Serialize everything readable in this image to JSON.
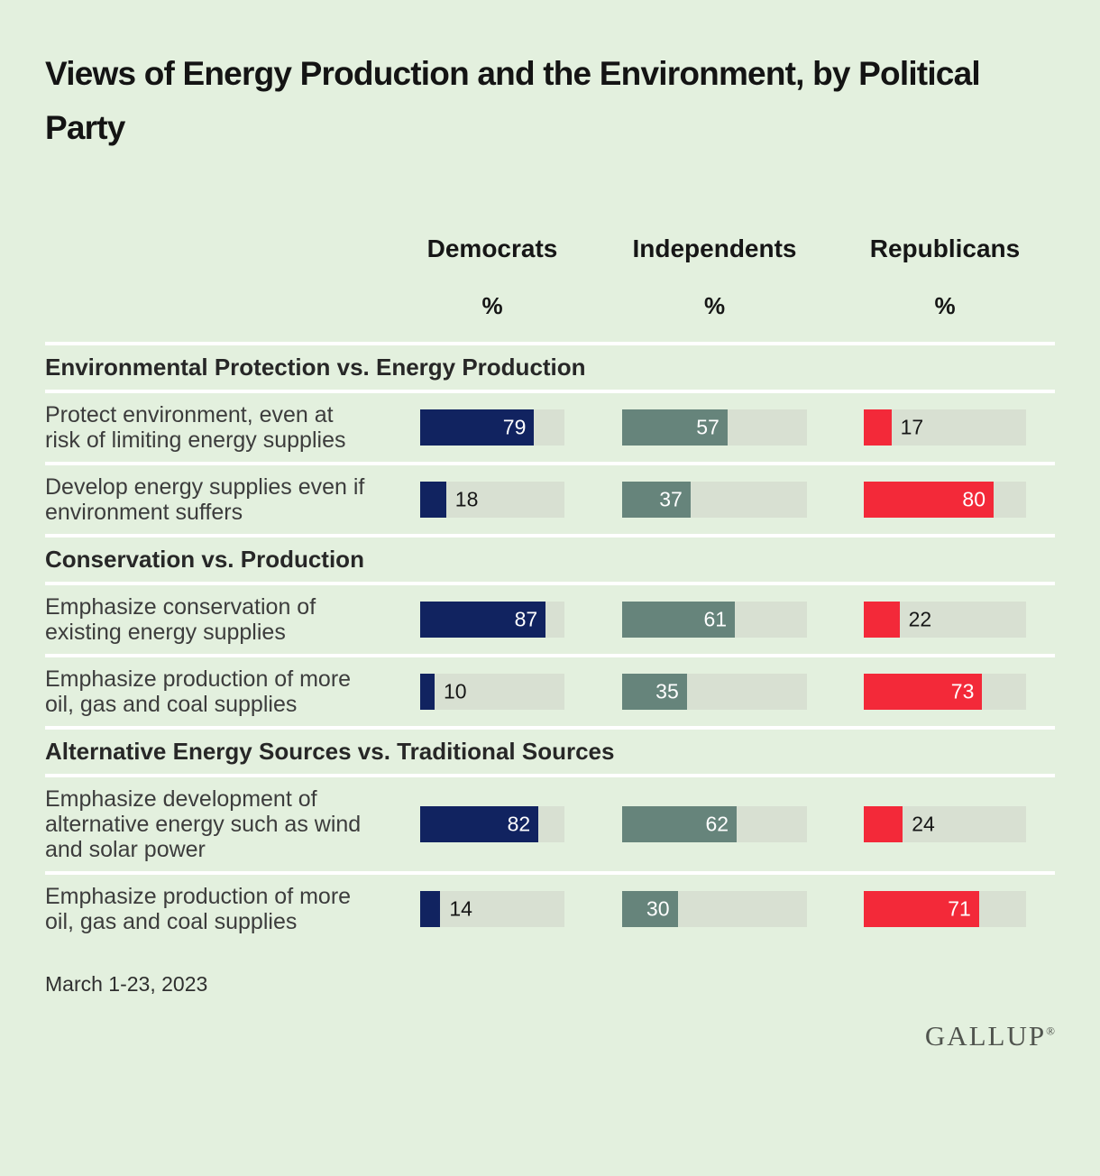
{
  "title": "Views of Energy Production and the Environment, by Political Party",
  "columns": [
    {
      "label": "Democrats",
      "unit": "%",
      "color": "#112360"
    },
    {
      "label": "Independents",
      "unit": "%",
      "color": "#66847b"
    },
    {
      "label": "Republicans",
      "unit": "%",
      "color": "#f32939"
    }
  ],
  "chart_data": {
    "type": "bar",
    "title": "Views of Energy Production and the Environment, by Political Party",
    "unit": "%",
    "xlim": [
      0,
      100
    ],
    "orientation": "horizontal",
    "grid": false,
    "series_names": [
      "Democrats",
      "Independents",
      "Republicans"
    ],
    "value_label_rule": "values >= 30 shown in white inside bar, smaller values in black outside bar",
    "sections": [
      {
        "header": "Environmental Protection vs. Energy Production",
        "rows": [
          {
            "label": "Protect environment, even at risk of limiting energy supplies",
            "values": [
              79,
              57,
              17
            ]
          },
          {
            "label": "Develop energy supplies even if environment suffers",
            "values": [
              18,
              37,
              80
            ]
          }
        ]
      },
      {
        "header": "Conservation vs. Production",
        "rows": [
          {
            "label": "Emphasize conservation of existing energy supplies",
            "values": [
              87,
              61,
              22
            ]
          },
          {
            "label": "Emphasize production of more oil, gas and coal supplies",
            "values": [
              10,
              35,
              73
            ]
          }
        ]
      },
      {
        "header": "Alternative Energy Sources vs. Traditional Sources",
        "rows": [
          {
            "label": "Emphasize development of alternative energy such as wind and solar power",
            "values": [
              82,
              62,
              24
            ]
          },
          {
            "label": "Emphasize production of more oil, gas and coal supplies",
            "values": [
              14,
              30,
              71
            ]
          }
        ]
      }
    ]
  },
  "footer": {
    "date": "March 1-23, 2023",
    "brand": "GALLUP",
    "registered": "®"
  },
  "colors": {
    "background": "#e3f0de",
    "bar_track": "#d8e0d2",
    "separator": "#ffffff",
    "democrat_bar": "#112360",
    "independent_bar": "#66847b",
    "republican_bar": "#f32939",
    "value_inside": "#ffffff",
    "value_outside": "#161616"
  }
}
